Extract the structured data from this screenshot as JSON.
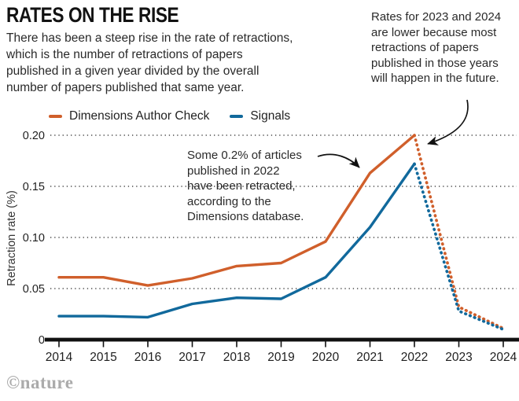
{
  "header": {
    "title": "RATES ON THE RISE",
    "subtitle_lines": [
      "There has been a steep rise in the rate of retractions,",
      "which is the number of retractions of papers",
      "published in a given year divided by the overall",
      "number of papers published that same year."
    ]
  },
  "annotations": {
    "future_note_lines": [
      "Rates for 2023 and 2024",
      "are lower because most",
      "retractions of papers",
      "published in those years",
      "will happen in the future."
    ],
    "retracted_note_lines": [
      "Some 0.2% of articles",
      "published in 2022",
      "have been retracted,",
      "according to the",
      "Dimensions database."
    ]
  },
  "watermark": "©nature",
  "chart_data": {
    "type": "line",
    "title": "RATES ON THE RISE",
    "xlabel": "",
    "ylabel": "Retraction rate (%)",
    "categories": [
      "2014",
      "2015",
      "2016",
      "2017",
      "2018",
      "2019",
      "2020",
      "2021",
      "2022",
      "2023",
      "2024"
    ],
    "yticks": [
      0,
      0.05,
      0.1,
      0.15,
      0.2
    ],
    "ytick_labels": [
      "0",
      "0.05",
      "0.10",
      "0.15",
      "0.20"
    ],
    "ylim": [
      0,
      0.21
    ],
    "grid": "horizontal-dotted",
    "legend_position": "top",
    "dotted_from_index": 8,
    "series": [
      {
        "name": "Dimensions Author Check",
        "color": "#d05f2b",
        "values": [
          0.061,
          0.061,
          0.053,
          0.06,
          0.072,
          0.075,
          0.096,
          0.163,
          0.2,
          0.032,
          0.011
        ]
      },
      {
        "name": "Signals",
        "color": "#11699c",
        "values": [
          0.023,
          0.023,
          0.022,
          0.035,
          0.041,
          0.04,
          0.061,
          0.11,
          0.172,
          0.028,
          0.01
        ]
      }
    ]
  }
}
